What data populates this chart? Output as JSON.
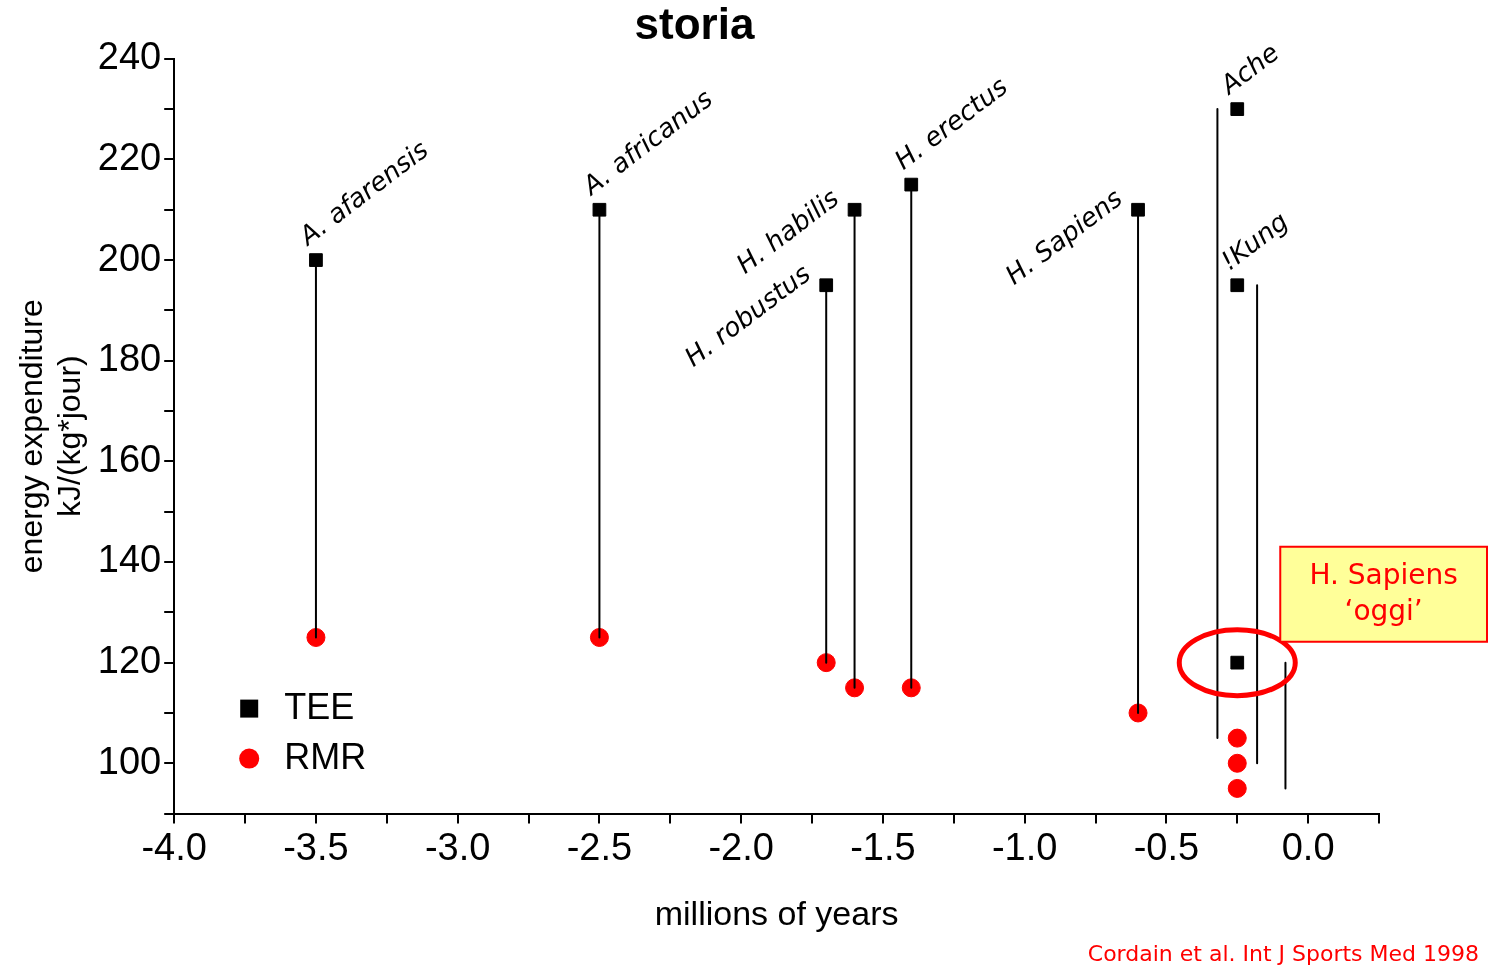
{
  "chart_data": {
    "type": "scatter",
    "title": "storia",
    "xlabel": "millions of years",
    "ylabel": "energy expenditure\nkJ/(kg*jour)",
    "xlim": [
      -4,
      0.25
    ],
    "xticks": [
      {
        "value": -4,
        "label": "-4.0"
      },
      {
        "value": -3.75,
        "label": null
      },
      {
        "value": -3.5,
        "label": "-3.5"
      },
      {
        "value": -3.25,
        "label": null
      },
      {
        "value": -3,
        "label": "-3.0"
      },
      {
        "value": -2.75,
        "label": null
      },
      {
        "value": -2.5,
        "label": "-2.5"
      },
      {
        "value": -2.25,
        "label": null
      },
      {
        "value": -2,
        "label": "-2.0"
      },
      {
        "value": -1.75,
        "label": null
      },
      {
        "value": -1.5,
        "label": "-1.5"
      },
      {
        "value": -1.25,
        "label": null
      },
      {
        "value": -1,
        "label": "-1.0"
      },
      {
        "value": -0.75,
        "label": null
      },
      {
        "value": -0.5,
        "label": "-0.5"
      },
      {
        "value": -0.25,
        "label": null
      },
      {
        "value": 0,
        "label": "0.0"
      },
      {
        "value": 0.25,
        "label": null
      }
    ],
    "ylim": [
      90,
      240
    ],
    "yticks": [
      {
        "value": 90,
        "label": null
      },
      100,
      {
        "value": 110,
        "label": null
      },
      120,
      {
        "value": 130,
        "label": null
      },
      140,
      {
        "value": 150,
        "label": null
      },
      160,
      {
        "value": 170,
        "label": null
      },
      180,
      {
        "value": 190,
        "label": null
      },
      200,
      {
        "value": 210,
        "label": null
      },
      220,
      {
        "value": 230,
        "label": null
      },
      240
    ],
    "grid": false,
    "legend": "bottom left",
    "series": [
      {
        "type": "line",
        "color": "#000000",
        "marker": "none",
        "line_style": "solid",
        "x": [
          -3.5,
          -3.5,
          null,
          -2.5,
          -2.5,
          null,
          -1.7,
          -1.7,
          null,
          -1.6,
          -1.6,
          null,
          -1.4,
          -1.4,
          null,
          -0.6,
          -0.6,
          null,
          -0.32,
          -0.32,
          null,
          -0.18,
          -0.18,
          null,
          -0.08,
          -0.08
        ],
        "values": [
          200,
          125,
          null,
          210,
          125,
          null,
          195,
          120,
          null,
          210,
          115,
          null,
          215,
          115,
          null,
          210,
          110,
          null,
          230,
          105,
          null,
          195,
          100,
          null,
          120,
          95
        ]
      },
      {
        "name": "TEE",
        "color": "#000000",
        "marker": "square",
        "x": [
          -3.5,
          -2.5,
          -1.7,
          -1.6,
          -1.4,
          -0.6,
          -0.25,
          -0.25,
          -0.25
        ],
        "values": [
          200,
          210,
          195,
          210,
          215,
          210,
          230,
          195,
          120
        ]
      },
      {
        "name": "RMR",
        "color": "#ff0000",
        "marker": "circle",
        "x": [
          -3.5,
          -2.5,
          -1.7,
          -1.6,
          -1.4,
          -0.6,
          -0.25,
          -0.25,
          -0.25
        ],
        "values": [
          125,
          125,
          120,
          115,
          115,
          110,
          105,
          100,
          95
        ]
      }
    ],
    "annotations": [
      {
        "text": "A. afarensis",
        "x": -3.5,
        "y": 200
      },
      {
        "text": "A. africanus",
        "x": -2.5,
        "y": 210
      },
      {
        "text": "H. robustus",
        "x": -1.7,
        "y": 195
      },
      {
        "text": "H. habilis",
        "x": -1.6,
        "y": 210
      },
      {
        "text": "H. erectus",
        "x": -1.4,
        "y": 215
      },
      {
        "text": "H. Sapiens",
        "x": -0.6,
        "y": 210
      },
      {
        "text": "Ache",
        "x": -0.25,
        "y": 230
      },
      {
        "text": "!Kung",
        "x": -0.25,
        "y": 195
      },
      {
        "text": "H. Sapiens\n‘oggi’",
        "x": -0.25,
        "y": 120
      },
      "Cordain et al. Int J Sports Med 1998"
    ]
  }
}
